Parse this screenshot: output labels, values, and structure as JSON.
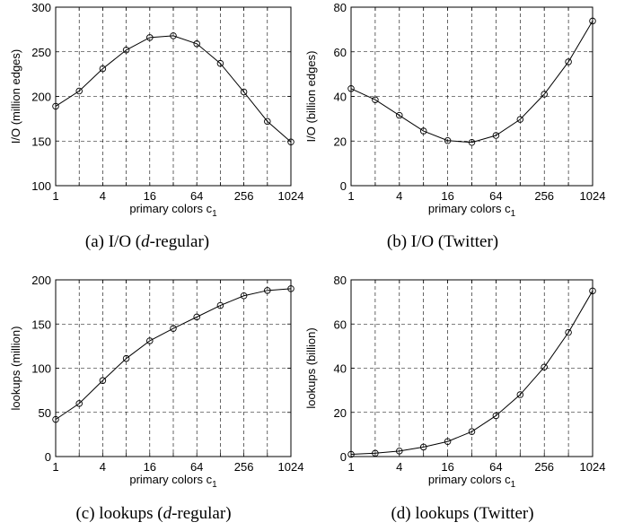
{
  "chart_data": [
    {
      "type": "line",
      "caption_prefix": "(a) I/O (",
      "caption_italic": "d",
      "caption_suffix": "-regular)",
      "xlabel": "primary colors c",
      "xlabel_sub": "1",
      "ylabel": "I/O (million edges)",
      "xscale": "log2",
      "xlim": [
        1,
        1024
      ],
      "ylim": [
        100,
        300
      ],
      "xticks": [
        1,
        4,
        16,
        64,
        256,
        1024
      ],
      "xgrid": [
        1,
        2,
        4,
        8,
        16,
        32,
        64,
        128,
        256,
        512,
        1024
      ],
      "yticks": [
        100,
        150,
        200,
        250,
        300
      ],
      "grid": true,
      "marker": "circle",
      "x": [
        1,
        2,
        4,
        8,
        16,
        32,
        64,
        128,
        256,
        512,
        1024
      ],
      "y": [
        189,
        206,
        231,
        252,
        266,
        268,
        259,
        237,
        205,
        172,
        149
      ]
    },
    {
      "type": "line",
      "caption_prefix": "(b) I/O (Twitter)",
      "caption_italic": "",
      "caption_suffix": "",
      "xlabel": "primary colors c",
      "xlabel_sub": "1",
      "ylabel": "I/O (billion edges)",
      "xscale": "log2",
      "xlim": [
        1,
        1024
      ],
      "ylim": [
        0,
        80
      ],
      "xticks": [
        1,
        4,
        16,
        64,
        256,
        1024
      ],
      "xgrid": [
        1,
        2,
        4,
        8,
        16,
        32,
        64,
        128,
        256,
        512,
        1024
      ],
      "yticks": [
        0,
        20,
        40,
        60,
        80
      ],
      "grid": true,
      "marker": "circle",
      "x": [
        1,
        2,
        4,
        8,
        16,
        32,
        64,
        128,
        256,
        512,
        1024
      ],
      "y": [
        43.5,
        38.5,
        31.5,
        24.5,
        20.2,
        19.4,
        22.5,
        29.7,
        41,
        55.5,
        73.8
      ]
    },
    {
      "type": "line",
      "caption_prefix": "(c) lookups (",
      "caption_italic": "d",
      "caption_suffix": "-regular)",
      "xlabel": "primary colors c",
      "xlabel_sub": "1",
      "ylabel": "lookups (million)",
      "xscale": "log2",
      "xlim": [
        1,
        1024
      ],
      "ylim": [
        0,
        200
      ],
      "xticks": [
        1,
        4,
        16,
        64,
        256,
        1024
      ],
      "xgrid": [
        1,
        2,
        4,
        8,
        16,
        32,
        64,
        128,
        256,
        512,
        1024
      ],
      "yticks": [
        0,
        50,
        100,
        150,
        200
      ],
      "grid": true,
      "marker": "circle",
      "x": [
        1,
        2,
        4,
        8,
        16,
        32,
        64,
        128,
        256,
        512,
        1024
      ],
      "y": [
        42,
        60,
        86,
        111,
        131,
        145,
        158,
        171,
        182,
        188,
        190
      ]
    },
    {
      "type": "line",
      "caption_prefix": "(d) lookups (Twitter)",
      "caption_italic": "",
      "caption_suffix": "",
      "xlabel": "primary colors c",
      "xlabel_sub": "1",
      "ylabel": "lookups (billion)",
      "xscale": "log2",
      "xlim": [
        1,
        1024
      ],
      "ylim": [
        0,
        80
      ],
      "xticks": [
        1,
        4,
        16,
        64,
        256,
        1024
      ],
      "xgrid": [
        1,
        2,
        4,
        8,
        16,
        32,
        64,
        128,
        256,
        512,
        1024
      ],
      "yticks": [
        0,
        20,
        40,
        60,
        80
      ],
      "grid": true,
      "marker": "circle",
      "x": [
        1,
        2,
        4,
        8,
        16,
        32,
        64,
        128,
        256,
        512,
        1024
      ],
      "y": [
        1,
        1.5,
        2.5,
        4.3,
        6.8,
        11.3,
        18.5,
        28,
        40.5,
        56.2,
        75
      ]
    }
  ]
}
